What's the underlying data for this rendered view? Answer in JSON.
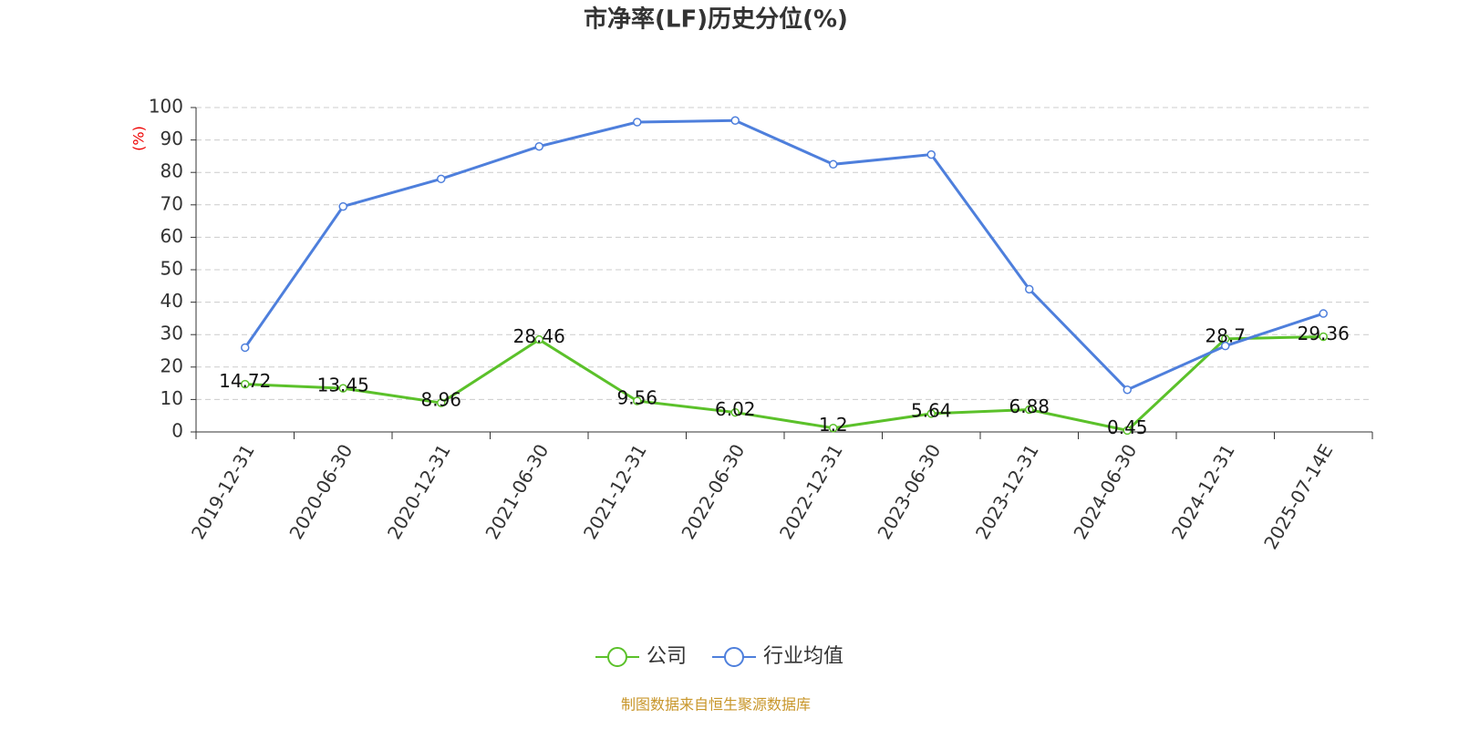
{
  "chart_data": {
    "type": "line",
    "title": "市净率(LF)历史分位(%)",
    "y_label": "(%)",
    "categories": [
      "2019-12-31",
      "2020-06-30",
      "2020-12-31",
      "2021-06-30",
      "2021-12-31",
      "2022-06-30",
      "2022-12-31",
      "2023-06-30",
      "2023-12-31",
      "2024-06-30",
      "2024-12-31",
      "2025-07-14E"
    ],
    "series": [
      {
        "name": "公司",
        "color": "#5bc12a",
        "show_values": true,
        "values": [
          14.72,
          13.45,
          8.96,
          28.46,
          9.56,
          6.02,
          1.2,
          5.64,
          6.88,
          0.45,
          28.7,
          29.36
        ]
      },
      {
        "name": "行业均值",
        "color": "#4e7fdc",
        "show_values": false,
        "values": [
          26,
          69.5,
          78,
          88,
          95.5,
          96,
          82.5,
          85.5,
          44,
          13,
          26.5,
          36.5
        ]
      }
    ],
    "ylim": [
      0,
      100
    ],
    "yticks": [
      0,
      10,
      20,
      30,
      40,
      50,
      60,
      70,
      80,
      90,
      100
    ],
    "grid": true,
    "legend": "bottom",
    "source": "制图数据来自恒生聚源数据库"
  }
}
